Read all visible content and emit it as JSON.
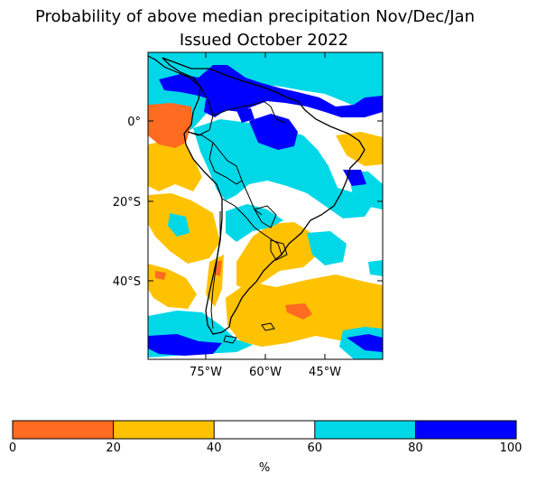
{
  "figure": {
    "title_line_1": "Probability of above median precipitation Nov/Dec/Jan",
    "title_line_2": "Issued October 2022"
  },
  "map": {
    "region": "South America",
    "latitude_ticks": [
      "0°",
      "20°S",
      "40°S"
    ],
    "longitude_ticks": [
      "75°W",
      "60°W",
      "45°W"
    ]
  },
  "colorbar": {
    "label": "%",
    "ticks": [
      "0",
      "20",
      "40",
      "60",
      "80",
      "100"
    ],
    "bins": [
      {
        "range": "0-20",
        "color": "#ff6b21"
      },
      {
        "range": "20-40",
        "color": "#ffc200"
      },
      {
        "range": "40-60",
        "color": "#ffffff"
      },
      {
        "range": "60-80",
        "color": "#00d8e8"
      },
      {
        "range": "80-100",
        "color": "#0000ff"
      }
    ]
  }
}
